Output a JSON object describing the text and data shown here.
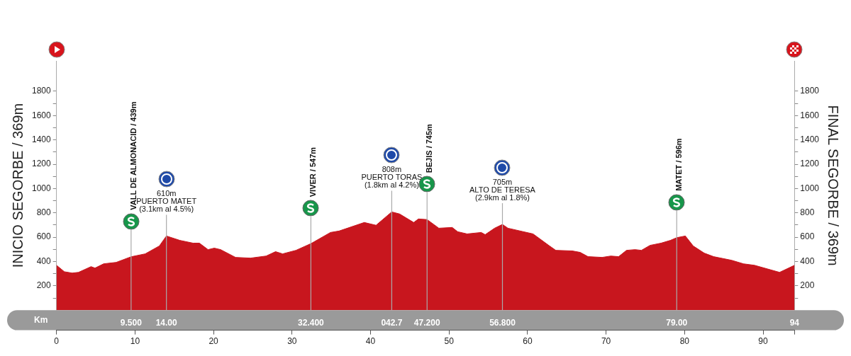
{
  "chart_data": {
    "type": "area",
    "ylabel": "INICIO SEGORBE / 369m",
    "y2label": "FINAL SEGORBE / 369m",
    "x2label": "Km",
    "series": [
      {
        "color": "#c8161e",
        "x": [
          0,
          1.0,
          2.0,
          2.8,
          4.4,
          4.9,
          6.0,
          7.6,
          9.5,
          11.3,
          13.1,
          14.0,
          15.7,
          17.4,
          18.2,
          19.3,
          20.1,
          20.9,
          22.8,
          24.7,
          26.7,
          27.9,
          28.8,
          30.5,
          32.4,
          34.9,
          36.0,
          39.2,
          40.7,
          42.7,
          43.7,
          45.5,
          46.1,
          47.2,
          48.7,
          50.4,
          51.1,
          52.3,
          54.1,
          54.6,
          55.8,
          56.8,
          57.5,
          60.7,
          62.8,
          63.6,
          65.7,
          66.7,
          67.7,
          69.5,
          70.6,
          71.6,
          72.6,
          73.7,
          74.5,
          75.6,
          77.0,
          78.2,
          79.0,
          80.1,
          81.1,
          82.5,
          83.7,
          86.0,
          87.5,
          88.9,
          92.1,
          94
        ],
        "values": [
          369,
          316,
          305,
          311,
          358,
          346,
          381,
          393,
          439,
          463,
          528,
          610,
          574,
          551,
          551,
          498,
          510,
          498,
          434,
          428,
          445,
          481,
          463,
          492,
          547,
          639,
          651,
          721,
          698,
          808,
          791,
          721,
          750,
          745,
          674,
          680,
          645,
          627,
          639,
          621,
          674,
          705,
          674,
          627,
          528,
          492,
          487,
          475,
          440,
          434,
          445,
          440,
          492,
          498,
          492,
          533,
          551,
          574,
          596,
          610,
          528,
          469,
          440,
          410,
          381,
          369,
          311,
          369
        ]
      }
    ],
    "xlim": [
      0,
      94
    ],
    "xticks": [
      0,
      10,
      20,
      30,
      40,
      50,
      60,
      70,
      80,
      90,
      {
        "value": 94,
        "label": null
      }
    ],
    "x2lim": [
      0,
      94
    ],
    "x2ticks": [
      {
        "value": 9.5,
        "label": "9.500"
      },
      {
        "value": 14,
        "label": "14.00"
      },
      {
        "value": 32.4,
        "label": "32.400"
      },
      {
        "value": 42.7,
        "label": "042.7"
      },
      {
        "value": 47.2,
        "label": "47.200"
      },
      {
        "value": 56.8,
        "label": "56.800"
      },
      {
        "value": 79,
        "label": "79.00"
      },
      94
    ],
    "ylim": [
      0,
      2050
    ],
    "yticks": [
      {
        "value": 100,
        "label": null
      },
      200,
      {
        "value": 300,
        "label": null
      },
      400,
      {
        "value": 500,
        "label": null
      },
      600,
      {
        "value": 700,
        "label": null
      },
      800,
      {
        "value": 900,
        "label": null
      },
      1000,
      {
        "value": 1100,
        "label": null
      },
      1200,
      {
        "value": 1300,
        "label": null
      },
      1400,
      {
        "value": 1500,
        "label": null
      },
      1600,
      {
        "value": 1700,
        "label": null
      },
      1800
    ],
    "y2lim": [
      0,
      2050
    ],
    "y2ticks": [
      {
        "value": 100,
        "label": null
      },
      200,
      {
        "value": 300,
        "label": null
      },
      400,
      {
        "value": 500,
        "label": null
      },
      600,
      {
        "value": 700,
        "label": null
      },
      800,
      {
        "value": 900,
        "label": null
      },
      1000,
      {
        "value": 1100,
        "label": null
      },
      1200,
      {
        "value": 1300,
        "label": null
      },
      1400,
      {
        "value": 1500,
        "label": null
      },
      1600,
      {
        "value": 1700,
        "label": null
      },
      1800
    ],
    "ref_lines": [
      {
        "axis": "x",
        "value": 9.5,
        "label": "VALL DE ALMONACID / 439m",
        "color": "#aaaaaa"
      },
      {
        "axis": "x",
        "value": 32.4,
        "label": "VIVER / 547m",
        "color": "#aaaaaa"
      },
      {
        "axis": "x",
        "value": 47.2,
        "label": "BEJIS / 745m",
        "color": "#aaaaaa"
      },
      {
        "axis": "x",
        "value": 79,
        "label": "MATET / 596m",
        "color": "#aaaaaa"
      }
    ],
    "annotations": [
      {
        "text": "610m\nPUERTO MATET\n(3.1km al 4.5%)",
        "x": 14,
        "y": 610
      },
      {
        "text": "808m\nPUERTO TORAS\n(1.8km al 4.2%)",
        "x": 42.7,
        "y": 808
      },
      {
        "text": "705m\nALTO DE TERESA\n(2.9km al 1.8%)",
        "x": 56.8,
        "y": 705
      }
    ],
    "grid": false,
    "legend": false,
    "marker": "none"
  }
}
